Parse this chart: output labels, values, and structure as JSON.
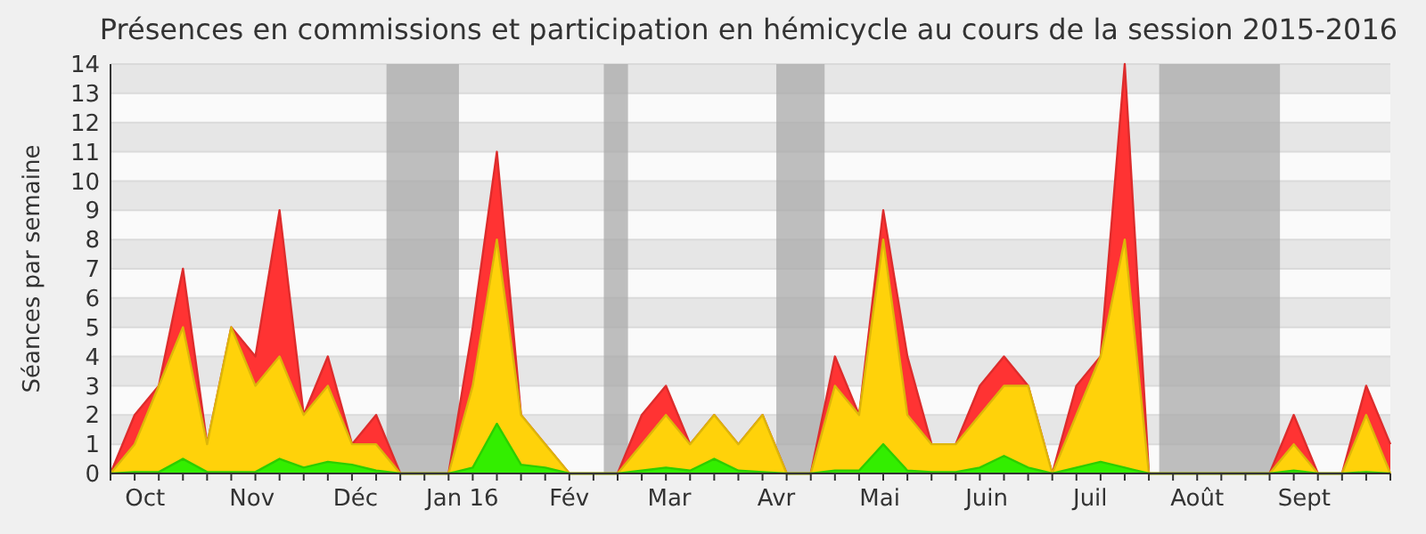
{
  "chart_data": {
    "type": "area",
    "title": "Présences en commissions et participation en hémicycle au cours de la session 2015-2016",
    "ylabel": "Séances par semaine",
    "x": [
      "2015-09-21",
      "2015-09-28",
      "2015-10-05",
      "2015-10-12",
      "2015-10-19",
      "2015-10-26",
      "2015-11-02",
      "2015-11-09",
      "2015-11-16",
      "2015-11-23",
      "2015-11-30",
      "2015-12-07",
      "2015-12-14",
      "2015-12-21",
      "2015-12-28",
      "2016-01-04",
      "2016-01-11",
      "2016-01-18",
      "2016-01-25",
      "2016-02-01",
      "2016-02-08",
      "2016-02-15",
      "2016-02-22",
      "2016-02-29",
      "2016-03-07",
      "2016-03-14",
      "2016-03-21",
      "2016-03-28",
      "2016-04-04",
      "2016-04-11",
      "2016-04-18",
      "2016-04-25",
      "2016-05-02",
      "2016-05-09",
      "2016-05-16",
      "2016-05-23",
      "2016-05-30",
      "2016-06-06",
      "2016-06-13",
      "2016-06-20",
      "2016-06-27",
      "2016-07-04",
      "2016-07-11",
      "2016-07-18",
      "2016-07-25",
      "2016-08-01",
      "2016-08-08",
      "2016-08-15",
      "2016-08-22",
      "2016-08-29",
      "2016-09-05",
      "2016-09-12",
      "2016-09-19",
      "2016-09-26"
    ],
    "series": [
      {
        "color": "#ff3333",
        "values": [
          0,
          2,
          3,
          7,
          1,
          5,
          4,
          9,
          2,
          4,
          1,
          2,
          0,
          0,
          0,
          5,
          11,
          2,
          1,
          0,
          0,
          0,
          2,
          3,
          1,
          2,
          1,
          2,
          0,
          0,
          4,
          2,
          9,
          4,
          1,
          1,
          3,
          4,
          3,
          0,
          3,
          4,
          14,
          0,
          0,
          0,
          0,
          0,
          0,
          2,
          0,
          0,
          3,
          1
        ]
      },
      {
        "color": "#ffd20a",
        "values": [
          0,
          1,
          3,
          5,
          1,
          5,
          3,
          4,
          2,
          3,
          1,
          1,
          0,
          0,
          0,
          3,
          8,
          2,
          1,
          0,
          0,
          0,
          1,
          2,
          1,
          2,
          1,
          2,
          0,
          0,
          3,
          2,
          8,
          2,
          1,
          1,
          2,
          3,
          3,
          0,
          2,
          4,
          8,
          0,
          0,
          0,
          0,
          0,
          0,
          1,
          0,
          0,
          2,
          0
        ]
      },
      {
        "color": "#33ee00",
        "values": [
          0,
          0.05,
          0.05,
          0.5,
          0.05,
          0.05,
          0.05,
          0.5,
          0.2,
          0.4,
          0.3,
          0.1,
          0,
          0,
          0,
          0.2,
          1.7,
          0.3,
          0.2,
          0,
          0,
          0,
          0.1,
          0.2,
          0.1,
          0.5,
          0.1,
          0.05,
          0,
          0,
          0.1,
          0.1,
          1,
          0.1,
          0.05,
          0.05,
          0.2,
          0.6,
          0.2,
          0,
          0.2,
          0.4,
          0.2,
          0,
          0,
          0,
          0,
          0,
          0,
          0.1,
          0,
          0,
          0.05,
          0
        ]
      }
    ],
    "xlim": [
      "2015-09-21",
      "2016-09-26"
    ],
    "xticks": [
      {
        "value": "2015-10-01",
        "label": "Oct"
      },
      {
        "value": "2015-11-01",
        "label": "Nov"
      },
      {
        "value": "2015-12-01",
        "label": "Déc"
      },
      {
        "value": "2016-01-01",
        "label": "Jan 16"
      },
      {
        "value": "2016-02-01",
        "label": "Fév"
      },
      {
        "value": "2016-03-01",
        "label": "Mar"
      },
      {
        "value": "2016-04-01",
        "label": "Avr"
      },
      {
        "value": "2016-05-01",
        "label": "Mai"
      },
      {
        "value": "2016-06-01",
        "label": "Juin"
      },
      {
        "value": "2016-07-01",
        "label": "Juil"
      },
      {
        "value": "2016-08-01",
        "label": "Août"
      },
      {
        "value": "2016-09-01",
        "label": "Sept"
      }
    ],
    "ylim": [
      0,
      14
    ],
    "yticks": [
      0,
      1,
      2,
      3,
      4,
      5,
      6,
      7,
      8,
      9,
      10,
      11,
      12,
      13,
      14
    ],
    "grid": "y",
    "bands": [
      {
        "axis": "x",
        "from": "2015-12-10",
        "to": "2015-12-31",
        "color": "#aaaaaa"
      },
      {
        "axis": "x",
        "from": "2016-02-11",
        "to": "2016-02-18",
        "color": "#aaaaaa"
      },
      {
        "axis": "x",
        "from": "2016-04-01",
        "to": "2016-04-15",
        "color": "#aaaaaa"
      },
      {
        "axis": "x",
        "from": "2016-07-21",
        "to": "2016-08-25",
        "color": "#aaaaaa"
      }
    ]
  }
}
